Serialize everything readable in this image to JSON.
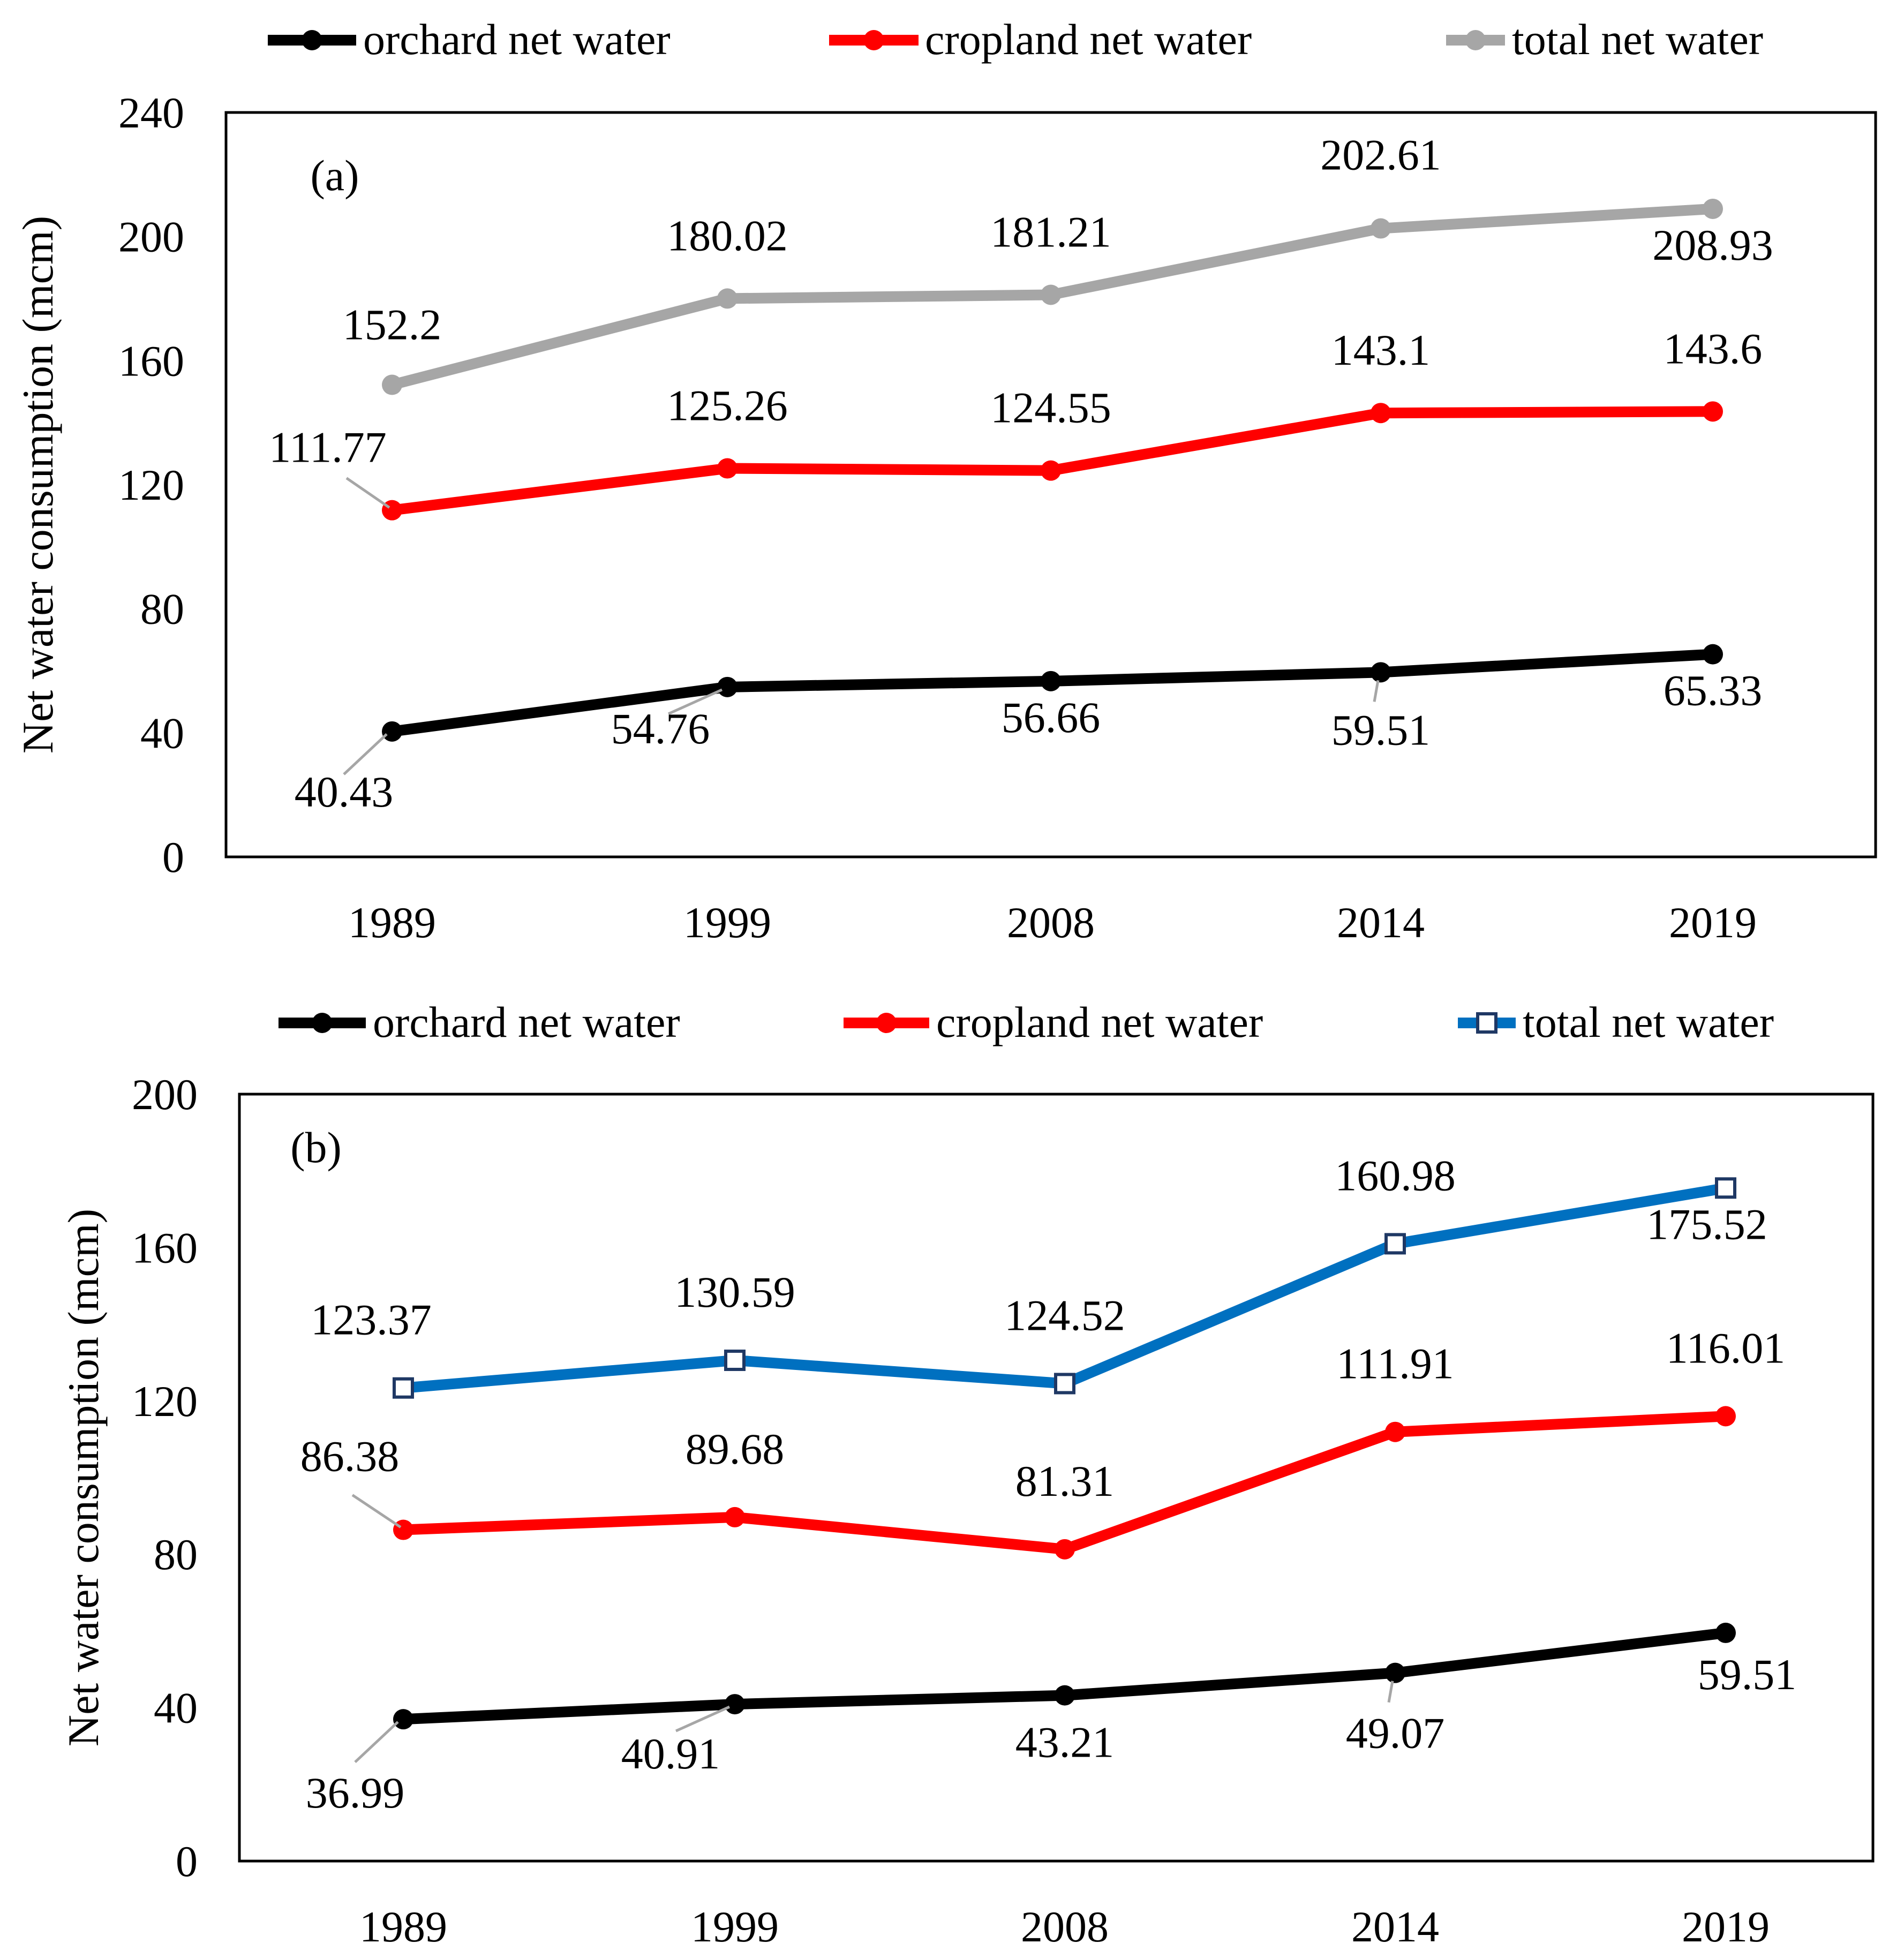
{
  "colors": {
    "orchard": "#000000",
    "cropland": "#ff0000",
    "total_a": "#a6a6a6",
    "total_b": "#0070c0",
    "axis": "#000000",
    "leader": "#a6a6a6"
  },
  "chart_data": [
    {
      "type": "line",
      "panel_label": "(a)",
      "ylabel": "Net water consumption (mcm)",
      "xlabel": "",
      "ylim": [
        0,
        240
      ],
      "y_ticks": [
        "0",
        "40",
        "80",
        "120",
        "160",
        "200",
        "240"
      ],
      "categories": [
        "1989",
        "1999",
        "2008",
        "2014",
        "2019"
      ],
      "grid": false,
      "legend_position": "top",
      "series": [
        {
          "name": "orchard net water",
          "key": "orchard",
          "marker": "circle",
          "values": [
            40.43,
            54.76,
            56.66,
            59.51,
            65.33
          ],
          "labels": [
            "40.43",
            "54.76",
            "56.66",
            "59.51",
            "65.33"
          ]
        },
        {
          "name": "cropland net water",
          "key": "cropland",
          "marker": "circle",
          "values": [
            111.77,
            125.26,
            124.55,
            143.1,
            143.6
          ],
          "labels": [
            "111.77",
            "125.26",
            "124.55",
            "143.1",
            "143.6"
          ]
        },
        {
          "name": "total net water",
          "key": "total_a",
          "marker": "circle",
          "values": [
            152.2,
            180.02,
            181.21,
            202.61,
            208.93
          ],
          "labels": [
            "152.2",
            "180.02",
            "181.21",
            "202.61",
            "208.93"
          ]
        }
      ]
    },
    {
      "type": "line",
      "panel_label": "(b)",
      "ylabel": "Net water consumption (mcm)",
      "xlabel": "",
      "ylim": [
        0,
        200
      ],
      "y_ticks": [
        "0",
        "40",
        "80",
        "120",
        "160",
        "200"
      ],
      "categories": [
        "1989",
        "1999",
        "2008",
        "2014",
        "2019"
      ],
      "grid": false,
      "legend_position": "top",
      "series": [
        {
          "name": "orchard net water",
          "key": "orchard",
          "marker": "circle",
          "values": [
            36.99,
            40.91,
            43.21,
            49.07,
            59.51
          ],
          "labels": [
            "36.99",
            "40.91",
            "43.21",
            "49.07",
            "59.51"
          ]
        },
        {
          "name": "cropland net water",
          "key": "cropland",
          "marker": "circle",
          "values": [
            86.38,
            89.68,
            81.31,
            111.91,
            116.01
          ],
          "labels": [
            "86.38",
            "89.68",
            "81.31",
            "111.91",
            "116.01"
          ]
        },
        {
          "name": "total net water",
          "key": "total_b",
          "marker": "square",
          "values": [
            123.37,
            130.59,
            124.52,
            160.98,
            175.52
          ],
          "labels": [
            "123.37",
            "130.59",
            "124.52",
            "160.98",
            "175.52"
          ]
        }
      ]
    }
  ]
}
